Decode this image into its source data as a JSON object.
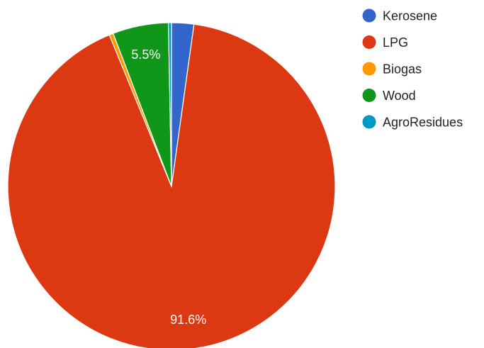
{
  "chart_data": {
    "type": "pie",
    "categories": [
      "Kerosene",
      "LPG",
      "Biogas",
      "Wood",
      "AgroResidues"
    ],
    "values": [
      2.2,
      91.6,
      0.4,
      5.5,
      0.3
    ],
    "data_labels": [
      "",
      "91.6%",
      "",
      "5.5%",
      ""
    ],
    "colors": [
      "#3366cc",
      "#dc3912",
      "#ff9900",
      "#109618",
      "#0099c6"
    ],
    "start_angle_deg": 0,
    "direction": "clockwise",
    "legend": {
      "position": "right",
      "items": [
        "Kerosene",
        "LPG",
        "Biogas",
        "Wood",
        "AgroResidues"
      ]
    }
  }
}
